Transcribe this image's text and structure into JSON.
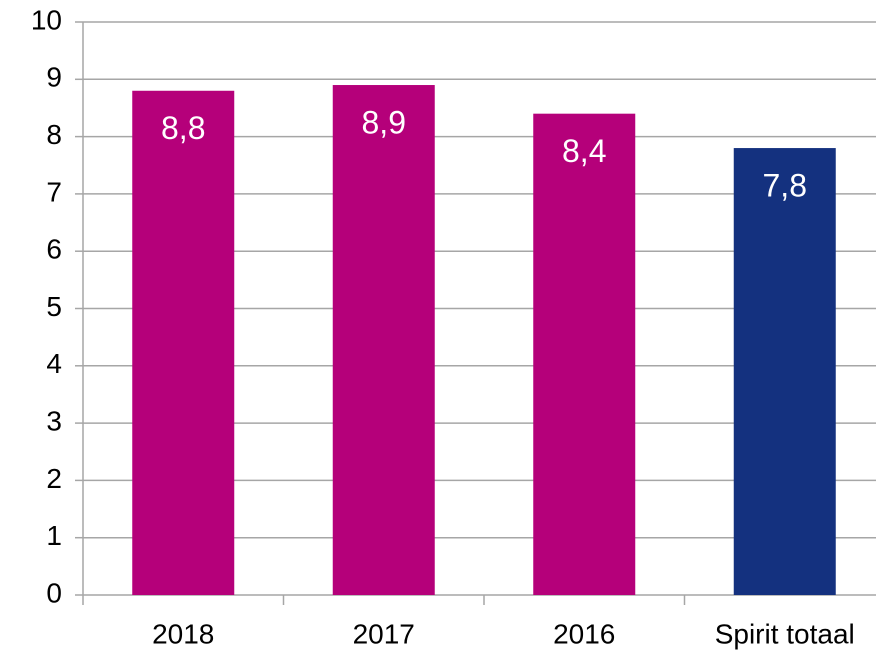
{
  "chart_data": {
    "type": "bar",
    "categories": [
      "2018",
      "2017",
      "2016",
      "Spirit totaal"
    ],
    "values": [
      8.8,
      8.9,
      8.4,
      7.8
    ],
    "value_labels": [
      "8,8",
      "8,9",
      "8,4",
      "7,8"
    ],
    "colors": [
      "#b5007a",
      "#b5007a",
      "#b5007a",
      "#14317f"
    ],
    "ylim": [
      0,
      10
    ],
    "yticks": [
      0,
      1,
      2,
      3,
      4,
      5,
      6,
      7,
      8,
      9,
      10
    ],
    "grid": true
  }
}
